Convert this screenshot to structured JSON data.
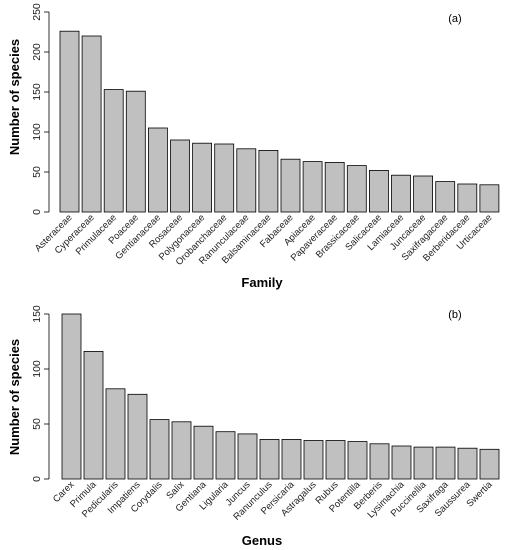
{
  "chart_data": [
    {
      "panel_label": "(a)",
      "type": "bar",
      "categories": [
        "Asteraceae",
        "Cyperaceae",
        "Primulaceae",
        "Poaceae",
        "Gentianaceae",
        "Rosaceae",
        "Polygonaceae",
        "Orobanchaceae",
        "Ranunculaceae",
        "Balsaminaceae",
        "Fabaceae",
        "Apiaceae",
        "Papaveraceae",
        "Brassicaceae",
        "Salicaceae",
        "Lamiaceae",
        "Juncaceae",
        "Saxifragaceae",
        "Berberidaceae",
        "Urticaceae"
      ],
      "values": [
        226,
        220,
        153,
        151,
        105,
        90,
        86,
        85,
        79,
        77,
        66,
        63,
        62,
        58,
        52,
        46,
        45,
        38,
        35,
        34
      ],
      "xlabel": "Family",
      "ylabel": "Number of species",
      "ylim": [
        0,
        250
      ],
      "yticks": [
        0,
        50,
        100,
        150,
        200,
        250
      ],
      "grid": false,
      "legend": "none"
    },
    {
      "panel_label": "(b)",
      "type": "bar",
      "categories": [
        "Carex",
        "Primula",
        "Pedicularis",
        "Impatiens",
        "Corydalis",
        "Salix",
        "Gentiana",
        "Ligularia",
        "Juncus",
        "Ranunculus",
        "Persicaria",
        "Astragalus",
        "Rubus",
        "Potentilla",
        "Berberis",
        "Lysimachia",
        "Puccinellia",
        "Saxifraga",
        "Saussurea",
        "Swertia"
      ],
      "values": [
        150,
        116,
        82,
        77,
        54,
        52,
        48,
        43,
        41,
        36,
        36,
        35,
        35,
        34,
        32,
        30,
        29,
        29,
        28,
        27
      ],
      "xlabel": "Genus",
      "ylabel": "Number of species",
      "ylim": [
        0,
        150
      ],
      "yticks": [
        0,
        50,
        100,
        150
      ],
      "grid": false,
      "legend": "none"
    }
  ]
}
